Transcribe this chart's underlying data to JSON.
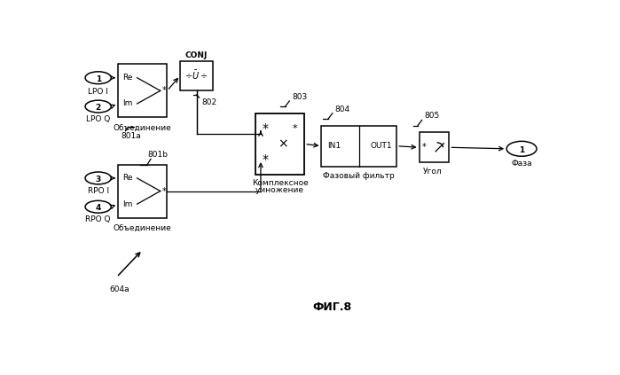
{
  "bg_color": "#ffffff",
  "fig_width": 6.99,
  "fig_height": 4.23,
  "title": "ФИГ.8",
  "label_604a": "604a",
  "label_801a": "801a",
  "label_801b": "801b",
  "label_802": "802",
  "label_803": "803",
  "label_804": "804",
  "label_805": "805",
  "text_objedinenie": "Объединение",
  "text_conj": "CONJ",
  "text_complex_mult_1": "Комплексное",
  "text_complex_mult_2": "умножение",
  "text_phase_filter": "Фазовый фильтр",
  "text_angle": "Угол",
  "text_phase": "Фаза",
  "text_IN1": "IN1",
  "text_OUT1": "OUT1",
  "text_Re": "Re",
  "text_Im": "Im",
  "font_size_small": 6.5,
  "font_size_block": 6.5,
  "font_size_title": 9
}
